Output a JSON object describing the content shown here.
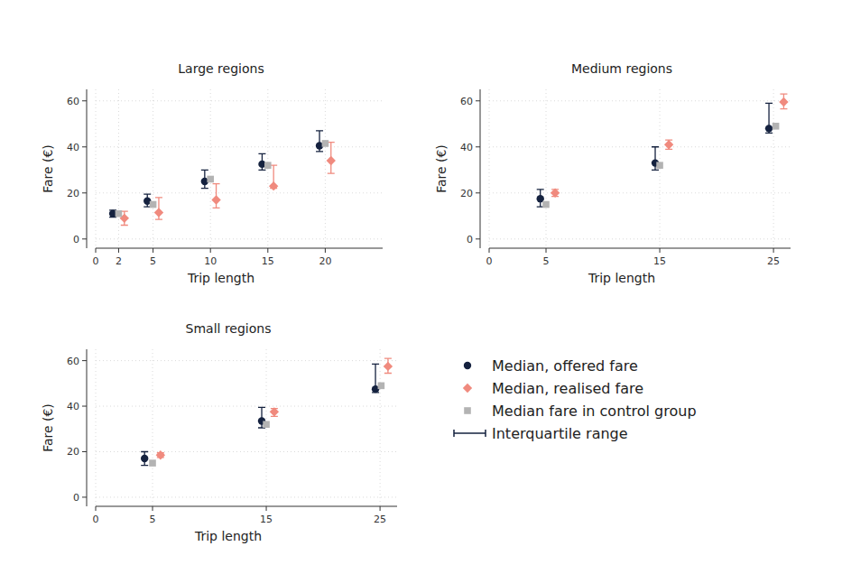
{
  "chart_data": [
    {
      "type": "scatter",
      "title": "Large regions",
      "x_label": "Trip length",
      "y_label": "Fare (€)",
      "xlim": [
        0,
        25
      ],
      "xticks": [
        0,
        2,
        5,
        10,
        15,
        20
      ],
      "ylim": [
        -4,
        65
      ],
      "yticks": [
        0,
        20,
        40,
        60
      ],
      "grid": true,
      "series": [
        {
          "name": "Median, offered fare",
          "color": "#15223f",
          "marker": "circle",
          "x": [
            1.5,
            4.5,
            9.5,
            14.5,
            19.5
          ],
          "values": [
            11,
            16.5,
            25,
            32.5,
            40.5
          ],
          "iqr_low": [
            9.5,
            14,
            22,
            30,
            38
          ],
          "iqr_high": [
            12.5,
            19.5,
            30,
            37,
            47
          ]
        },
        {
          "name": "Median, realised fare",
          "color": "#f08a7e",
          "marker": "diamond",
          "x": [
            2.5,
            5.5,
            10.5,
            15.5,
            20.5
          ],
          "values": [
            9,
            11.5,
            17,
            23,
            34
          ],
          "iqr_low": [
            6,
            8.5,
            13.5,
            22,
            28.5
          ],
          "iqr_high": [
            12,
            18,
            24,
            32,
            42
          ]
        },
        {
          "name": "Median fare in control group",
          "color": "#b3b3b3",
          "marker": "square",
          "x": [
            2,
            5,
            10,
            15,
            20
          ],
          "values": [
            11,
            15,
            26,
            32,
            41.5
          ]
        }
      ]
    },
    {
      "type": "scatter",
      "title": "Medium regions",
      "x_label": "Trip length",
      "y_label": "Fare (€)",
      "xlim": [
        0,
        26.5
      ],
      "xticks": [
        0,
        5,
        15,
        25
      ],
      "ylim": [
        -4,
        65
      ],
      "yticks": [
        0,
        20,
        40,
        60
      ],
      "grid": true,
      "series": [
        {
          "color": "#15223f",
          "marker": "circle",
          "x": [
            4.5,
            14.6,
            24.6
          ],
          "values": [
            17.5,
            33,
            48
          ],
          "iqr_low": [
            14,
            30,
            46
          ],
          "iqr_high": [
            21.5,
            40,
            59
          ]
        },
        {
          "color": "#f08a7e",
          "marker": "diamond",
          "x": [
            5.8,
            15.8,
            25.9
          ],
          "values": [
            20,
            41,
            59.5
          ],
          "iqr_low": [
            18.5,
            39,
            56.5
          ],
          "iqr_high": [
            21.5,
            43,
            63
          ]
        },
        {
          "color": "#b3b3b3",
          "marker": "square",
          "x": [
            5,
            15,
            25.2
          ],
          "values": [
            15,
            32,
            49
          ]
        }
      ]
    },
    {
      "type": "scatter",
      "title": "Small regions",
      "x_label": "Trip length",
      "y_label": "Fare (€)",
      "xlim": [
        0,
        26.5
      ],
      "xticks": [
        0,
        5,
        15,
        25
      ],
      "ylim": [
        -4,
        65
      ],
      "yticks": [
        0,
        20,
        40,
        60
      ],
      "grid": true,
      "series": [
        {
          "color": "#15223f",
          "marker": "circle",
          "x": [
            4.3,
            14.6,
            24.6
          ],
          "values": [
            17,
            33.5,
            47.5
          ],
          "iqr_low": [
            14,
            30.5,
            46
          ],
          "iqr_high": [
            20,
            39.5,
            58.5
          ]
        },
        {
          "color": "#f08a7e",
          "marker": "diamond",
          "x": [
            5.7,
            15.7,
            25.7
          ],
          "values": [
            18.5,
            37.5,
            57.5
          ],
          "iqr_low": [
            17.5,
            35.5,
            54.5
          ],
          "iqr_high": [
            19.5,
            39,
            61
          ]
        },
        {
          "color": "#b3b3b3",
          "marker": "square",
          "x": [
            5,
            15,
            25.1
          ],
          "values": [
            15,
            32,
            49
          ]
        }
      ]
    }
  ],
  "legend_extra": {
    "label": "Interquartile range"
  }
}
